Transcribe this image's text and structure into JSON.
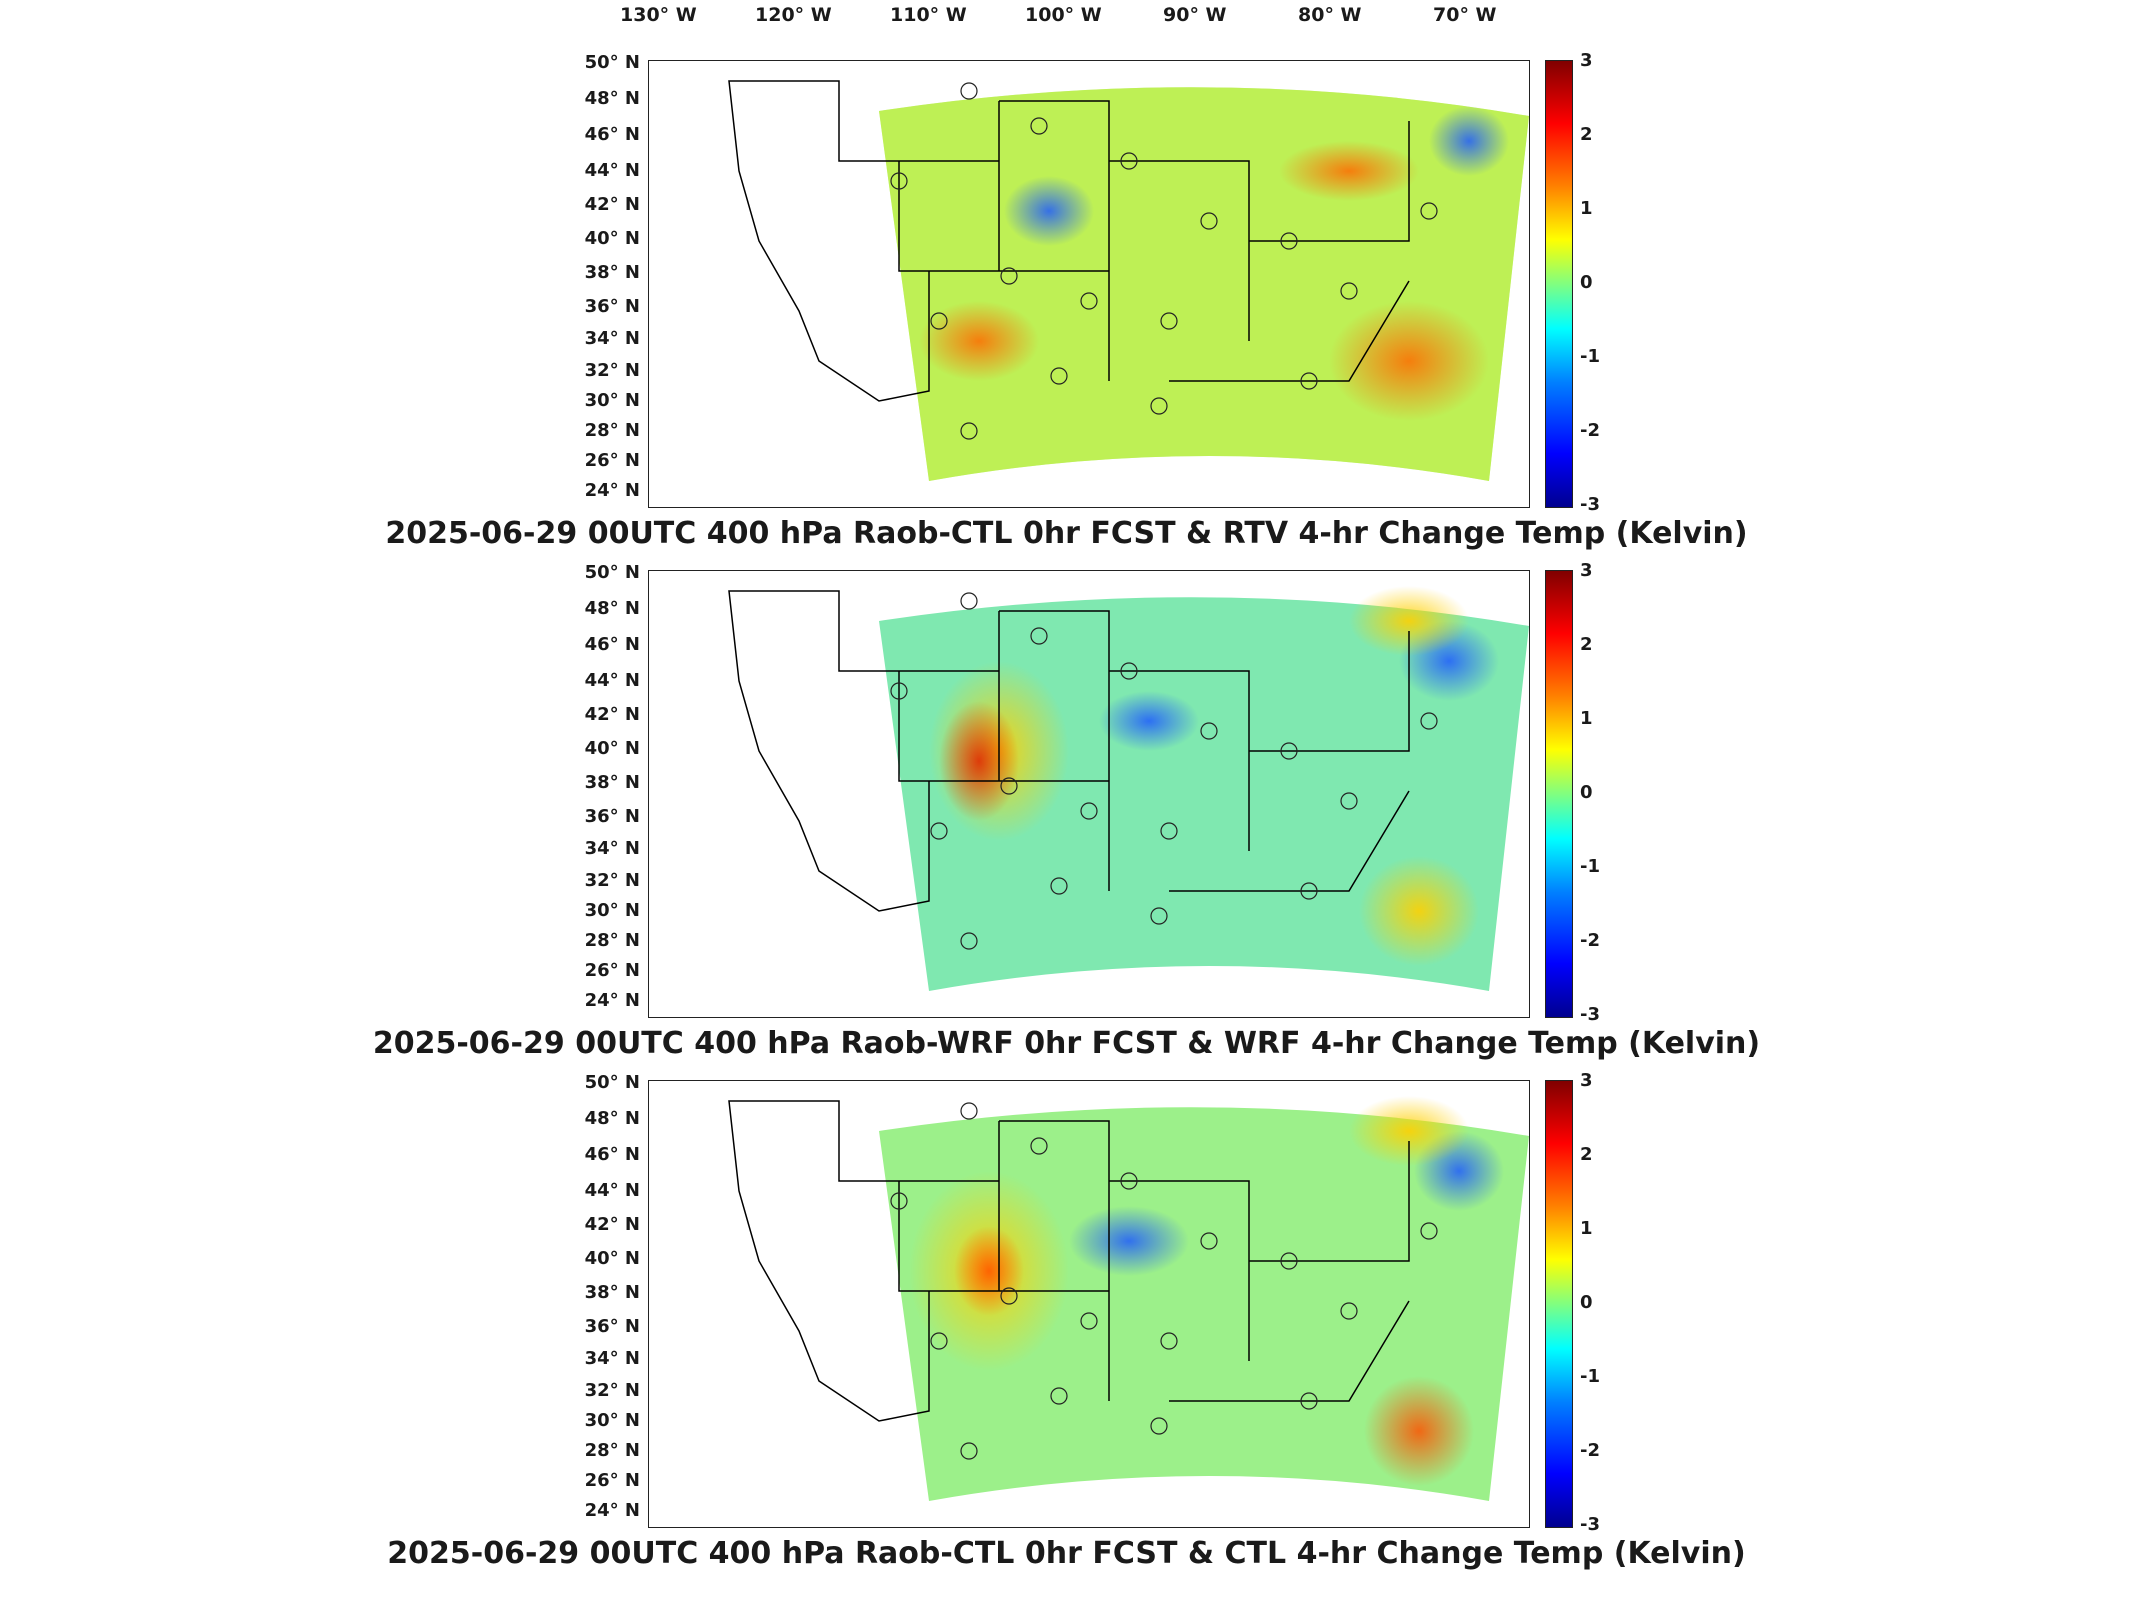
{
  "lon_labels": [
    "130° W",
    "120° W",
    "110° W",
    "100° W",
    "90° W",
    "80° W",
    "70° W"
  ],
  "lat_labels": [
    "50° N",
    "48° N",
    "46° N",
    "44° N",
    "42° N",
    "40° N",
    "38° N",
    "36° N",
    "34° N",
    "32° N",
    "30° N",
    "28° N",
    "26° N",
    "24° N"
  ],
  "colorbar_ticks": [
    "3",
    "2",
    "1",
    "0",
    "-1",
    "-2",
    "-3"
  ],
  "colors": {
    "cold_extreme": "#00008f",
    "neutral": "#80ff80",
    "warm_extreme": "#800000",
    "border": "#000000"
  },
  "panels": [
    {
      "title": "2025-06-29 00UTC 400 hPa Raob-CTL 0hr FCST & RTV 4-hr Change Temp (Kelvin)"
    },
    {
      "title": "2025-06-29 00UTC 400 hPa Raob-WRF 0hr FCST & WRF 4-hr Change Temp (Kelvin)"
    },
    {
      "title": "2025-06-29 00UTC 400 hPa Raob-CTL 0hr FCST & CTL 4-hr Change Temp (Kelvin)"
    }
  ]
}
